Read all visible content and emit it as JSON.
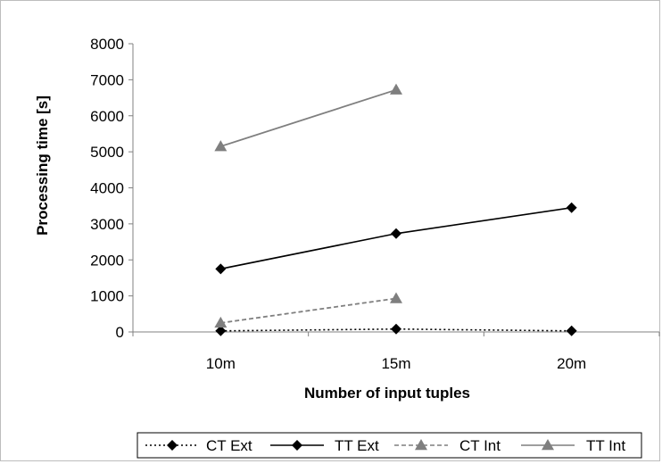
{
  "chart_data": {
    "type": "line",
    "categories": [
      "10m",
      "15m",
      "20m"
    ],
    "xlabel": "Number of input tuples",
    "ylabel": "Processing time [s]",
    "ylim": [
      0,
      8000
    ],
    "yticks": [
      0,
      1000,
      2000,
      3000,
      4000,
      5000,
      6000,
      7000,
      8000
    ],
    "grid": false,
    "legend_position": "bottom",
    "series": [
      {
        "name": "CT Ext",
        "values": [
          30,
          80,
          30
        ],
        "color": "#000000",
        "dash": "dotted",
        "marker": "diamond"
      },
      {
        "name": "TT Ext",
        "values": [
          1750,
          2730,
          3450
        ],
        "color": "#000000",
        "dash": "solid",
        "marker": "diamond"
      },
      {
        "name": "CT Int",
        "values": [
          250,
          930,
          null
        ],
        "color": "#7f7f7f",
        "dash": "dashed",
        "marker": "triangle"
      },
      {
        "name": "TT Int",
        "values": [
          5150,
          6720,
          null
        ],
        "color": "#7f7f7f",
        "dash": "solid",
        "marker": "triangle"
      }
    ]
  }
}
